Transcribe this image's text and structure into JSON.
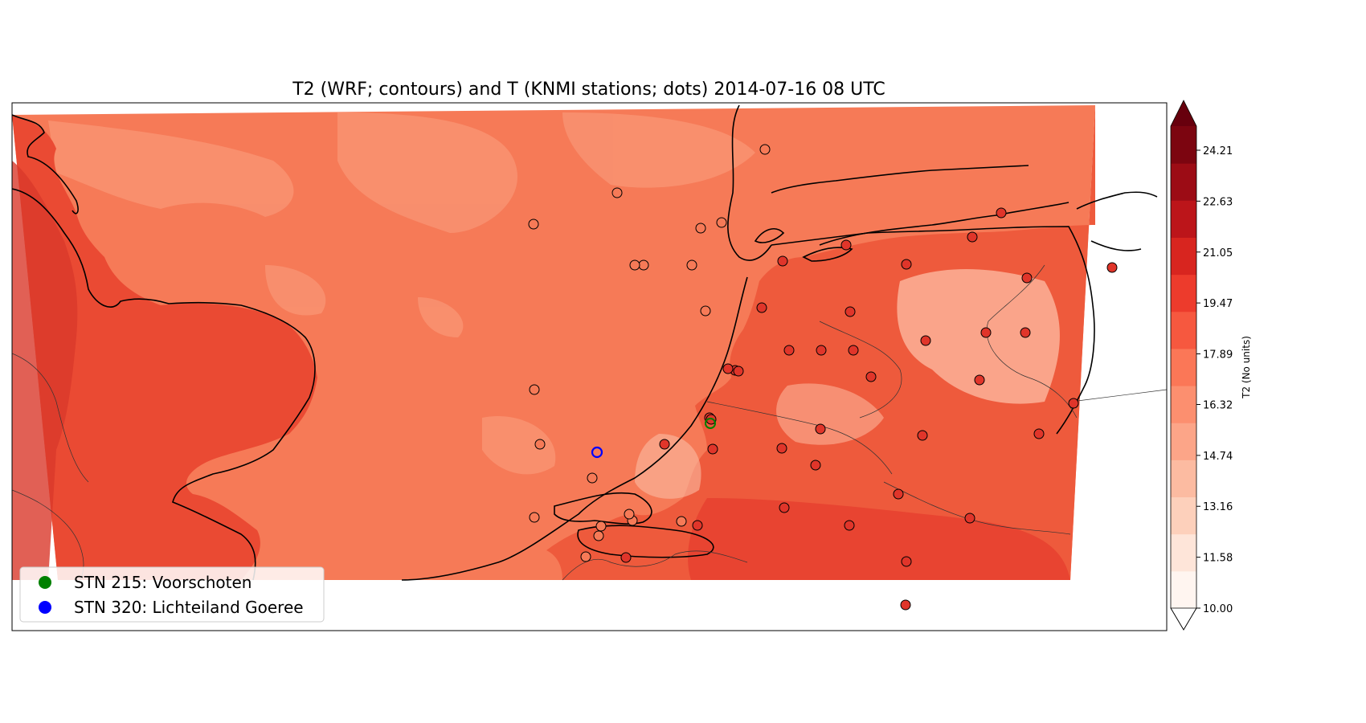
{
  "title": "T2 (WRF; contours) and T (KNMI stations; dots) 2014-07-16 08 UTC",
  "colorbar": {
    "label": "T2 (No units)",
    "ticks": [
      "10.00",
      "11.58",
      "13.16",
      "14.74",
      "16.32",
      "17.89",
      "19.47",
      "21.05",
      "22.63",
      "24.21"
    ],
    "colors": [
      "#fff5f0",
      "#fee5d9",
      "#fdd0bb",
      "#fcbba1",
      "#fca588",
      "#fc8f6f",
      "#fb7757",
      "#f6583f",
      "#ed3b2c",
      "#d8251f",
      "#bc151a",
      "#9c0c15",
      "#7c0510"
    ],
    "extend": "max"
  },
  "legend": {
    "items": [
      {
        "label": "STN 215: Voorschoten",
        "color": "#008000"
      },
      {
        "label": "STN 320: Lichteiland Goeree",
        "color": "#0000ff"
      }
    ]
  },
  "map": {
    "variable": "T2",
    "colormap": "Reds",
    "ocean_color": "#f67a57",
    "land_color": "#ea4a33",
    "station_marker_edge": "#000000"
  }
}
